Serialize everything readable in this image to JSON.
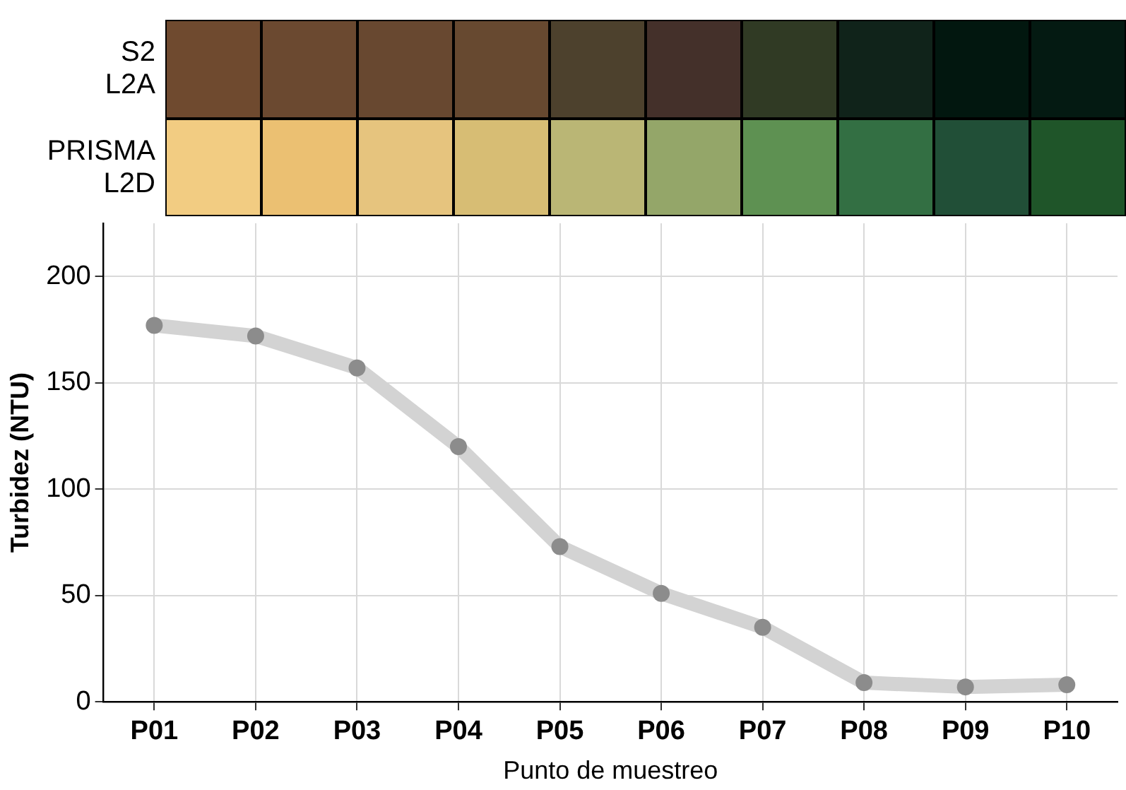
{
  "chart_data": {
    "type": "line",
    "categories": [
      "P01",
      "P02",
      "P03",
      "P04",
      "P05",
      "P06",
      "P07",
      "P08",
      "P09",
      "P10"
    ],
    "series": [
      {
        "color": "#d3d3d3",
        "values": [
          177,
          172,
          157,
          120,
          73,
          51,
          35,
          9,
          7,
          8
        ]
      }
    ],
    "ylim": [
      0,
      225
    ],
    "yticks": [
      0,
      50,
      100,
      150,
      200
    ],
    "xlabel": "Punto de muestreo",
    "ylabel": "Turbidez (NTU)",
    "grid": true,
    "legend": false,
    "marker": "circle",
    "line_style": "solid",
    "annotations": [
      "S2\nL2A",
      "PRISMA\nL2D"
    ]
  }
}
